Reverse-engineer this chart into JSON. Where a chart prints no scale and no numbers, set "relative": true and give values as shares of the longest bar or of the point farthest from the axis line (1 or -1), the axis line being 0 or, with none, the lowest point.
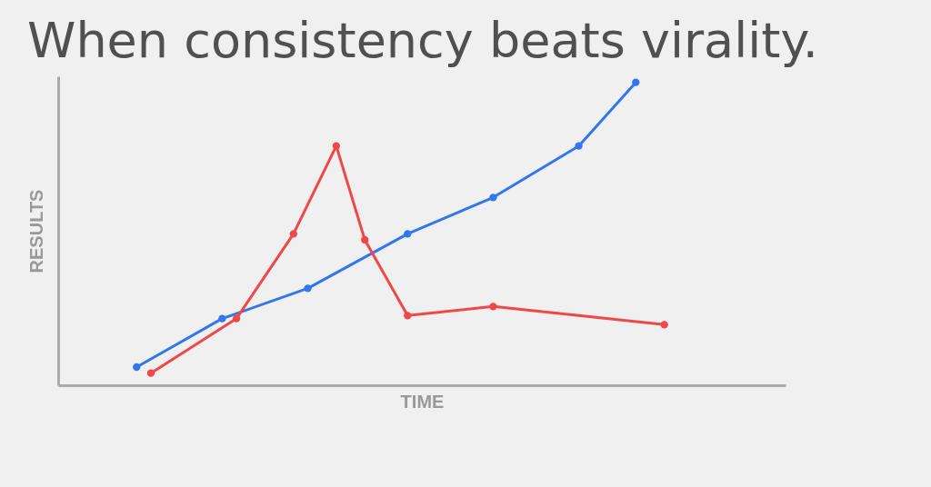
{
  "chart_data": {
    "type": "line",
    "title": "When consistency beats virality.",
    "xlabel": "TIME",
    "ylabel": "RESULTS",
    "relative": true,
    "marker": "circle",
    "line_style": "solid",
    "grid": false,
    "legend": false,
    "categories": [
      null,
      null,
      null,
      null,
      null,
      null,
      null,
      null,
      null,
      null,
      null,
      null,
      null,
      null,
      null,
      null,
      null,
      null,
      null,
      null,
      null,
      null,
      null,
      null,
      null,
      null,
      null,
      null,
      null,
      null,
      null,
      null,
      null,
      null,
      null,
      null,
      null,
      null,
      null,
      null,
      null,
      null,
      null,
      null,
      null,
      null,
      null,
      null,
      null,
      null,
      null
    ],
    "series": [
      {
        "color": "#3377ee",
        "values": [
          null,
          null,
          null,
          null,
          null,
          0.06,
          null,
          null,
          null,
          null,
          null,
          0.22,
          null,
          null,
          null,
          null,
          null,
          0.32,
          null,
          null,
          null,
          null,
          null,
          null,
          0.5,
          null,
          null,
          null,
          null,
          null,
          0.62,
          null,
          null,
          null,
          null,
          null,
          0.79,
          null,
          null,
          null,
          1,
          null,
          null,
          null,
          null,
          null,
          null,
          null,
          null,
          null,
          null
        ]
      },
      {
        "color": "#f04848",
        "values": [
          null,
          null,
          null,
          null,
          null,
          null,
          0.04,
          null,
          null,
          null,
          null,
          null,
          0.22,
          null,
          null,
          null,
          0.5,
          null,
          null,
          0.79,
          null,
          0.48,
          null,
          null,
          0.23,
          null,
          null,
          null,
          null,
          null,
          0.26,
          null,
          null,
          null,
          null,
          null,
          null,
          null,
          null,
          null,
          null,
          null,
          0.2,
          null,
          null,
          null,
          null,
          null,
          null,
          null,
          null
        ]
      }
    ]
  }
}
